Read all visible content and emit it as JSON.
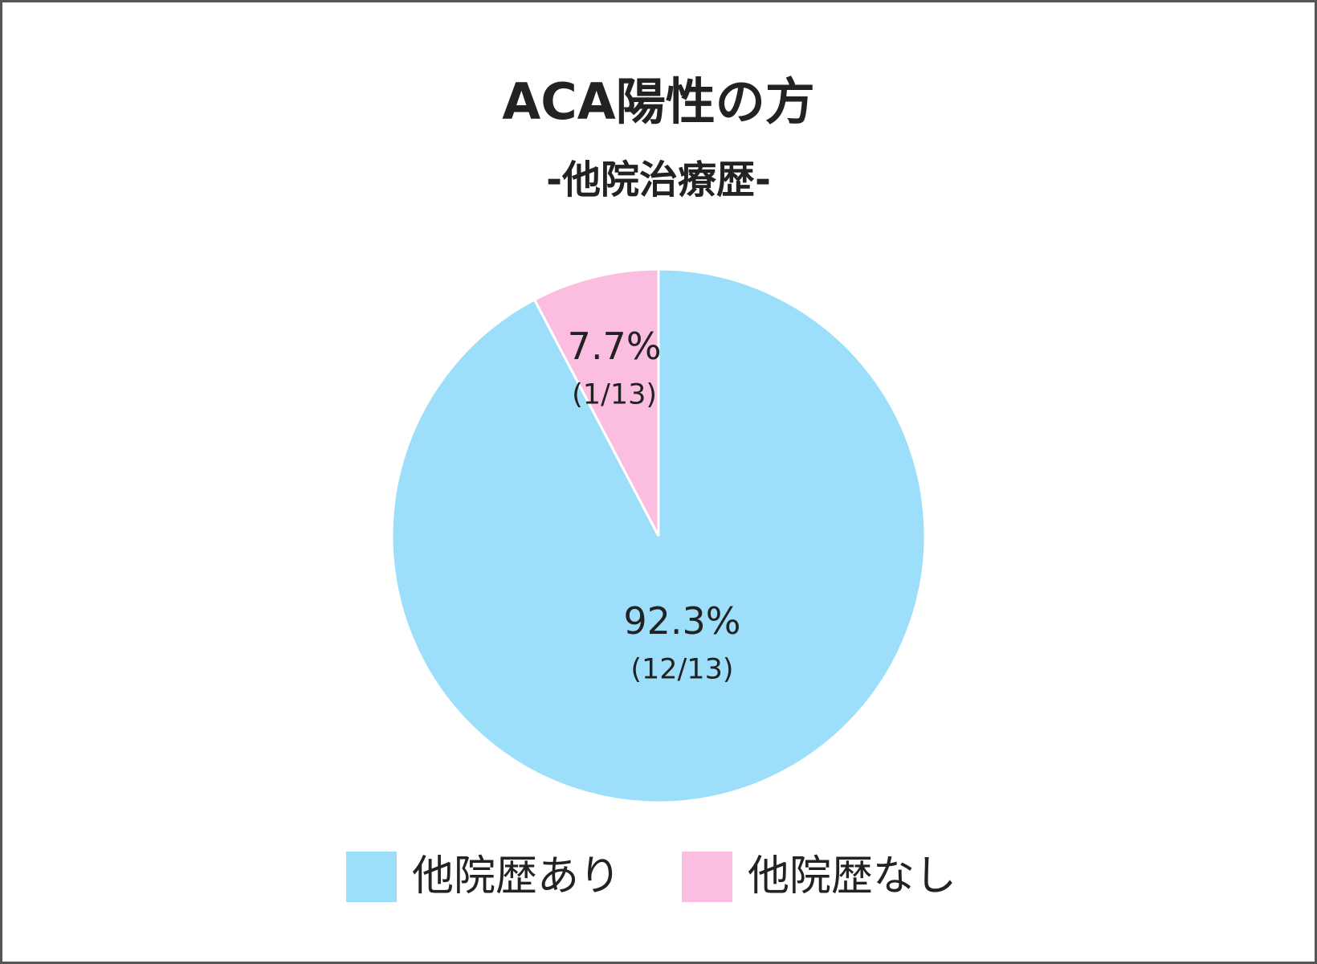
{
  "chart_data": {
    "type": "pie",
    "title": "ACA陽性の方",
    "subtitle": "-他院治療歴-",
    "categories": [
      "他院歴あり",
      "他院歴なし"
    ],
    "values": [
      92.3,
      7.7
    ],
    "value_labels": [
      "92.3%",
      "7.7%"
    ],
    "count_labels": [
      "(12/13)",
      "(1/13)"
    ],
    "colors": [
      "#9ddffb",
      "#fbbde0"
    ],
    "legend": "bottom"
  }
}
